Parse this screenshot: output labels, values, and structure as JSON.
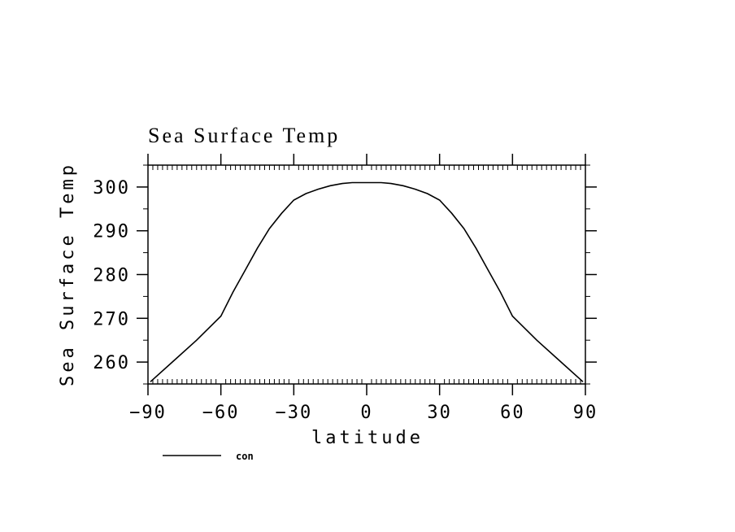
{
  "chart_data": {
    "type": "line",
    "title": "Sea Surface Temp",
    "xlabel": "latitude",
    "ylabel": "Sea Surface Temp",
    "xlim": [
      -90,
      90
    ],
    "ylim": [
      255,
      305
    ],
    "xticks": [
      -90,
      -60,
      -30,
      0,
      30,
      60,
      90
    ],
    "yticks": [
      260,
      270,
      280,
      290,
      300
    ],
    "grid": false,
    "legend": "bottom-left",
    "series": [
      {
        "name": "con",
        "color": "#000000",
        "x": [
          -89,
          -80,
          -70,
          -60,
          -55,
          -50,
          -45,
          -40,
          -35,
          -30,
          -25,
          -20,
          -15,
          -10,
          -6,
          6,
          10,
          15,
          20,
          25,
          30,
          35,
          40,
          45,
          50,
          55,
          60,
          70,
          80,
          89
        ],
        "y": [
          255.5,
          260,
          265,
          270.5,
          276,
          281,
          286,
          290.5,
          294,
          297,
          298.5,
          299.5,
          300.3,
          300.8,
          301,
          301,
          300.8,
          300.3,
          299.5,
          298.5,
          297,
          294,
          290.5,
          286,
          281,
          276,
          270.5,
          265,
          260,
          255.5
        ]
      }
    ]
  }
}
